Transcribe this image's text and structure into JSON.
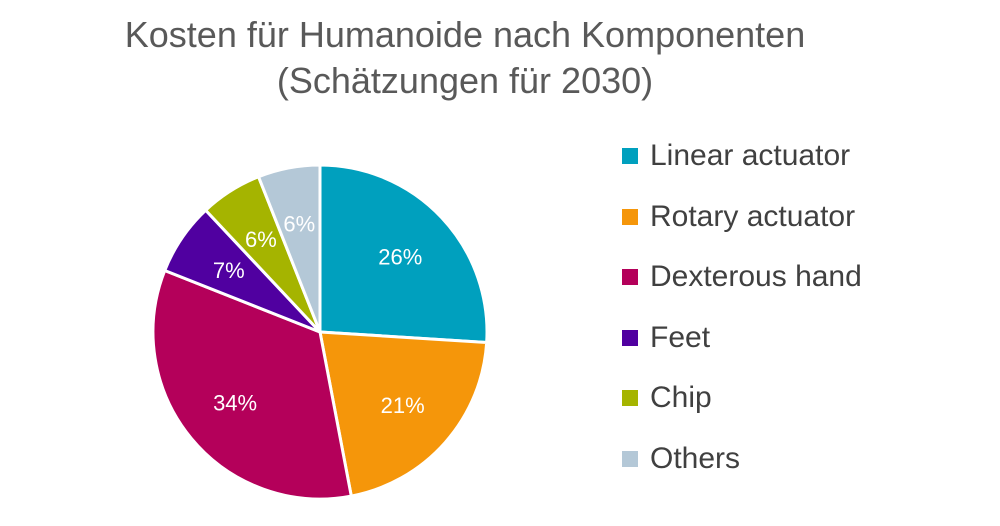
{
  "chart_data": {
    "type": "pie",
    "title_line1": "Kosten für Humanoide nach Komponenten",
    "title_line2": "(Schätzungen für 2030)",
    "legend_position": "right",
    "slices": [
      {
        "label": "Linear actuator",
        "value": 26,
        "value_label": "26%",
        "color": "#00A0BE"
      },
      {
        "label": "Rotary actuator",
        "value": 21,
        "value_label": "21%",
        "color": "#F5960A"
      },
      {
        "label": "Dexterous hand",
        "value": 34,
        "value_label": "34%",
        "color": "#B4005A"
      },
      {
        "label": "Feet",
        "value": 7,
        "value_label": "7%",
        "color": "#5000A0"
      },
      {
        "label": "Chip",
        "value": 6,
        "value_label": "6%",
        "color": "#A5B400"
      },
      {
        "label": "Others",
        "value": 6,
        "value_label": "6%",
        "color": "#B4C8D7"
      }
    ]
  }
}
